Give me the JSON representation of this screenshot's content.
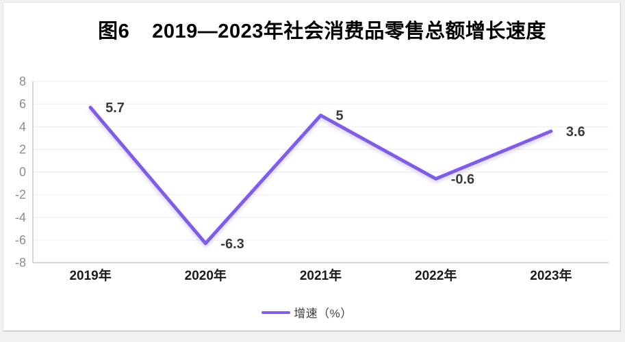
{
  "header": {
    "prefix": "图6",
    "text": "2019—2023年社会消费品零售总额增长速度"
  },
  "legend": {
    "label": "增速（%）"
  },
  "colors": {
    "line": "#7f5fe0",
    "line_shadow": "rgba(132,100,224,0.35)",
    "gridline": "#ececec",
    "axis": "#c9c9c9",
    "ytick_text": "#8c8c8c",
    "xtick_text": "#1a1a1a",
    "data_label_text": "#3a3a3a",
    "title_text": "#000000",
    "panel_bg": "#ffffff",
    "panel_border": "#d2d2d2",
    "page_bg": "#f1f1f1"
  },
  "chart_data": {
    "type": "line",
    "title": "图6 2019—2023年社会消费品零售总额增长速度",
    "categories": [
      "2019年",
      "2020年",
      "2021年",
      "2022年",
      "2023年"
    ],
    "series": [
      {
        "name": "增速（%）",
        "values": [
          5.7,
          -6.3,
          5,
          -0.6,
          3.6
        ],
        "data_labels": [
          "5.7",
          "-6.3",
          "5",
          "-0.6",
          "3.6"
        ],
        "color": "#7f5fe0"
      }
    ],
    "xlabel": "",
    "ylabel": "",
    "ylim": [
      -8,
      8
    ],
    "ytick_step": 2,
    "yticks": [
      8,
      6,
      4,
      2,
      0,
      -2,
      -4,
      -6,
      -8
    ],
    "grid": true,
    "legend_position": "bottom"
  }
}
